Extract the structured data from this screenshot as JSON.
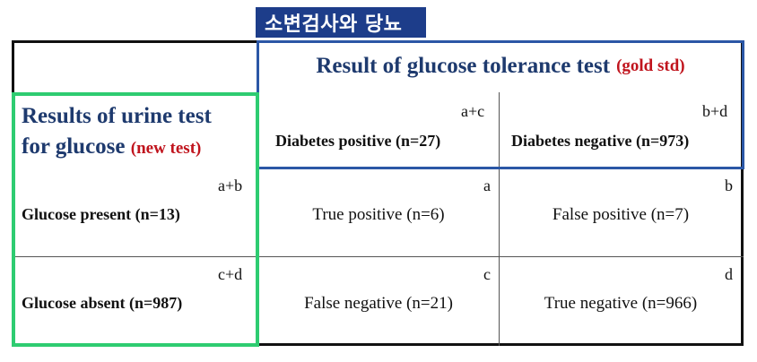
{
  "tag": "소변검사와 당뇨",
  "header": {
    "top_title": "Result of glucose tolerance test",
    "top_subtitle": "(gold std)",
    "left_title_line1": "Results of urine test",
    "left_title_line2": "for glucose",
    "left_subtitle": "(new test)"
  },
  "columns": [
    {
      "corner": "a+c",
      "label": "Diabetes positive (n=27)"
    },
    {
      "corner": "b+d",
      "label": "Diabetes negative (n=973)"
    }
  ],
  "rows": [
    {
      "corner": "a+b",
      "label": "Glucose present (n=13)",
      "cells": [
        {
          "corner": "a",
          "text": "True positive (n=6)"
        },
        {
          "corner": "b",
          "text": "False positive (n=7)"
        }
      ]
    },
    {
      "corner": "c+d",
      "label": "Glucose absent (n=987)",
      "cells": [
        {
          "corner": "c",
          "text": "False negative (n=21)"
        },
        {
          "corner": "d",
          "text": "True negative (n=966)"
        }
      ]
    }
  ]
}
